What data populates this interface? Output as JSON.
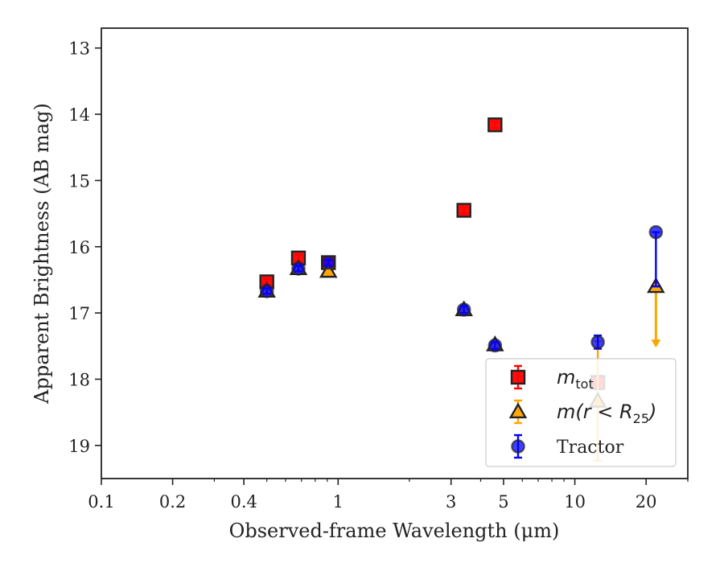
{
  "chart_data": {
    "type": "scatter",
    "title": "",
    "xlabel": "Observed-frame Wavelength (μm)",
    "ylabel": "Apparent Brightness (AB mag)",
    "xscale": "log",
    "xlim": [
      0.1,
      30
    ],
    "ylim": [
      19.5,
      12.7
    ],
    "y_inverted": true,
    "xticks": [
      {
        "value": 0.1,
        "label": "0.1"
      },
      {
        "value": 0.2,
        "label": "0.2"
      },
      {
        "value": 0.4,
        "label": "0.4"
      },
      {
        "value": 1,
        "label": "1"
      },
      {
        "value": 3,
        "label": "3"
      },
      {
        "value": 5,
        "label": "5"
      },
      {
        "value": 10,
        "label": "10"
      },
      {
        "value": 20,
        "label": "20"
      }
    ],
    "yticks": [
      {
        "value": 13,
        "label": "13"
      },
      {
        "value": 14,
        "label": "14"
      },
      {
        "value": 15,
        "label": "15"
      },
      {
        "value": 16,
        "label": "16"
      },
      {
        "value": 17,
        "label": "17"
      },
      {
        "value": 18,
        "label": "18"
      },
      {
        "value": 19,
        "label": "19"
      }
    ],
    "grid": false,
    "legend_position": "lower-right",
    "series": [
      {
        "name": "m_tot",
        "legend_main": "m",
        "legend_sub": "tot",
        "legend_tail": "",
        "marker": "square",
        "color": "#ff0000",
        "edge_color": "#222222",
        "points": [
          {
            "x": 0.5,
            "y": 16.53,
            "err": 0.05
          },
          {
            "x": 0.68,
            "y": 16.17,
            "err": 0.05
          },
          {
            "x": 0.91,
            "y": 16.24,
            "err": 0.05
          },
          {
            "x": 3.4,
            "y": 15.45,
            "err": 0.05
          },
          {
            "x": 4.6,
            "y": 14.16,
            "err": 0.05
          },
          {
            "x": 12.5,
            "y": 18.05,
            "err": 0.1
          }
        ]
      },
      {
        "name": "m(r < R_25)",
        "legend_main": "m(r < R",
        "legend_sub": "25",
        "legend_tail": ")",
        "marker": "triangle",
        "color": "#ffa500",
        "edge_color": "#222222",
        "points": [
          {
            "x": 0.5,
            "y": 16.67,
            "err": 0.04
          },
          {
            "x": 0.68,
            "y": 16.33,
            "err": 0.04
          },
          {
            "x": 0.91,
            "y": 16.37,
            "err": 0.04
          },
          {
            "x": 3.4,
            "y": 16.95,
            "err": 0.04
          },
          {
            "x": 4.6,
            "y": 17.48,
            "err": 0.04
          },
          {
            "x": 12.5,
            "y": 18.33,
            "err": 0.9
          },
          {
            "x": 22,
            "y": 16.6,
            "upper_limit_to": 17.45
          }
        ]
      },
      {
        "name": "Tractor",
        "legend_main": "Tractor",
        "legend_sub": "",
        "legend_tail": "",
        "marker": "circle",
        "color": "#0000ff",
        "edge_color": "#222222",
        "points": [
          {
            "x": 0.5,
            "y": 16.67,
            "err": 0.04
          },
          {
            "x": 0.68,
            "y": 16.33,
            "err": 0.04
          },
          {
            "x": 0.91,
            "y": 16.24,
            "err": 0.04
          },
          {
            "x": 3.4,
            "y": 16.95,
            "err": 0.05
          },
          {
            "x": 4.6,
            "y": 17.49,
            "err": 0.05
          },
          {
            "x": 12.5,
            "y": 17.44,
            "err": 0.1
          },
          {
            "x": 22,
            "y": 15.78,
            "err_low": 0,
            "err_high": 0.82
          }
        ]
      }
    ]
  }
}
